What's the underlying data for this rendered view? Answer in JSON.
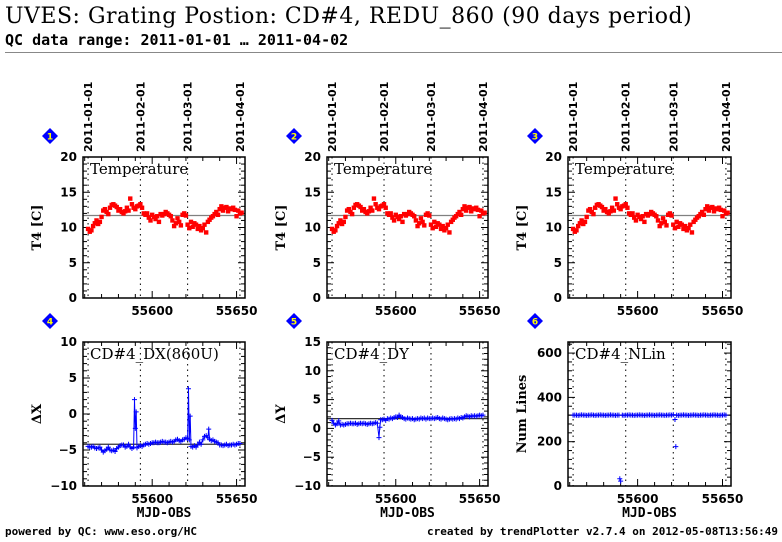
{
  "header": {
    "title": "UVES: Grating Postion: CD#4, REDU_860 (90 days period)",
    "subtitle": "QC data range: 2011-01-01 … 2011-04-02"
  },
  "footer": {
    "left": "powered by QC: www.eso.org/HC",
    "right": "created by trendPlotter v2.7.4 on 2012-05-08T13:56:49"
  },
  "colors": {
    "temperature_points": "#ff0000",
    "position_points": "#0000ff",
    "badge_fill": "#0000ff",
    "badge_number": "#ffff00",
    "reference_line": "#808080"
  },
  "chart_data": [
    {
      "id": "1",
      "type": "scatter",
      "title": "Temperature",
      "xlabel": "",
      "ylabel": "T4 [C]",
      "xlim": [
        55559,
        55655
      ],
      "ylim": [
        0,
        20
      ],
      "yticks": [
        0,
        5,
        10,
        15,
        20
      ],
      "xticks": [
        55600,
        55650
      ],
      "reference_line": 11.7,
      "marker": "dot",
      "color_key": "temperature_points",
      "date_markers": [
        {
          "label": "2011-01-01",
          "mjd": 55562
        },
        {
          "label": "2011-02-01",
          "mjd": 55593
        },
        {
          "label": "2011-03-01",
          "mjd": 55621
        },
        {
          "label": "2011-04-01",
          "mjd": 55652
        }
      ],
      "series_key": "temperature"
    },
    {
      "id": "2",
      "type": "scatter",
      "title": "Temperature",
      "xlabel": "",
      "ylabel": "T4 [C]",
      "xlim": [
        55559,
        55655
      ],
      "ylim": [
        0,
        20
      ],
      "yticks": [
        0,
        5,
        10,
        15,
        20
      ],
      "xticks": [
        55600,
        55650
      ],
      "reference_line": 11.7,
      "marker": "dot",
      "color_key": "temperature_points",
      "date_markers": [
        {
          "label": "2011-01-01",
          "mjd": 55562
        },
        {
          "label": "2011-02-01",
          "mjd": 55593
        },
        {
          "label": "2011-03-01",
          "mjd": 55621
        },
        {
          "label": "2011-04-01",
          "mjd": 55652
        }
      ],
      "series_key": "temperature"
    },
    {
      "id": "3",
      "type": "scatter",
      "title": "Temperature",
      "xlabel": "",
      "ylabel": "T4 [C]",
      "xlim": [
        55559,
        55655
      ],
      "ylim": [
        0,
        20
      ],
      "yticks": [
        0,
        5,
        10,
        15,
        20
      ],
      "xticks": [
        55600,
        55650
      ],
      "reference_line": 11.7,
      "marker": "dot",
      "color_key": "temperature_points",
      "date_markers": [
        {
          "label": "2011-01-01",
          "mjd": 55562
        },
        {
          "label": "2011-02-01",
          "mjd": 55593
        },
        {
          "label": "2011-03-01",
          "mjd": 55621
        },
        {
          "label": "2011-04-01",
          "mjd": 55652
        }
      ],
      "series_key": "temperature"
    },
    {
      "id": "4",
      "type": "line",
      "title": "CD#4_DX(860U)",
      "xlabel": "MJD-OBS",
      "ylabel": "ΔX",
      "xlim": [
        55559,
        55655
      ],
      "ylim": [
        -10,
        10
      ],
      "yticks": [
        -10,
        -5,
        0,
        5,
        10
      ],
      "xticks": [
        55600,
        55650
      ],
      "reference_line": -4.2,
      "marker": "plus",
      "color_key": "position_points",
      "date_markers": [
        {
          "label": "2011-01-01",
          "mjd": 55562
        },
        {
          "label": "2011-02-01",
          "mjd": 55593
        },
        {
          "label": "2011-03-01",
          "mjd": 55621
        },
        {
          "label": "2011-04-01",
          "mjd": 55652
        }
      ],
      "series_key": "dx"
    },
    {
      "id": "5",
      "type": "line",
      "title": "CD#4_DY",
      "xlabel": "MJD-OBS",
      "ylabel": "ΔY",
      "xlim": [
        55559,
        55655
      ],
      "ylim": [
        -10,
        15
      ],
      "yticks": [
        -10,
        -5,
        0,
        5,
        10,
        15
      ],
      "xticks": [
        55600,
        55650
      ],
      "reference_line": 1.7,
      "marker": "plus",
      "color_key": "position_points",
      "date_markers": [
        {
          "label": "2011-01-01",
          "mjd": 55562
        },
        {
          "label": "2011-02-01",
          "mjd": 55593
        },
        {
          "label": "2011-03-01",
          "mjd": 55621
        },
        {
          "label": "2011-04-01",
          "mjd": 55652
        }
      ],
      "series_key": "dy"
    },
    {
      "id": "6",
      "type": "scatter",
      "title": "CD#4_NLin",
      "xlabel": "MJD-OBS",
      "ylabel": "Num Lines",
      "xlim": [
        55559,
        55655
      ],
      "ylim": [
        0,
        650
      ],
      "yticks": [
        0,
        200,
        400,
        600
      ],
      "xticks": [
        55600,
        55650
      ],
      "reference_line": 320,
      "marker": "plus",
      "color_key": "position_points",
      "date_markers": [
        {
          "label": "2011-01-01",
          "mjd": 55562
        },
        {
          "label": "2011-02-01",
          "mjd": 55593
        },
        {
          "label": "2011-03-01",
          "mjd": 55621
        },
        {
          "label": "2011-04-01",
          "mjd": 55652
        }
      ],
      "series_key": "nlin"
    }
  ],
  "series": {
    "temperature": {
      "x": [
        55562,
        55563,
        55564,
        55565,
        55566,
        55567,
        55568,
        55569,
        55570,
        55571,
        55572,
        55573,
        55574,
        55575,
        55576,
        55577,
        55578,
        55579,
        55580,
        55581,
        55582,
        55583,
        55584,
        55585,
        55586,
        55587,
        55588,
        55589,
        55590,
        55591,
        55592,
        55593,
        55594,
        55595,
        55596,
        55597,
        55598,
        55599,
        55600,
        55601,
        55602,
        55603,
        55604,
        55605,
        55606,
        55607,
        55608,
        55609,
        55610,
        55611,
        55612,
        55613,
        55614,
        55615,
        55616,
        55617,
        55618,
        55619,
        55620,
        55621,
        55622,
        55623,
        55624,
        55625,
        55626,
        55627,
        55628,
        55629,
        55630,
        55631,
        55632,
        55633,
        55634,
        55635,
        55636,
        55637,
        55638,
        55639,
        55640,
        55641,
        55642,
        55643,
        55644,
        55645,
        55646,
        55647,
        55648,
        55649,
        55650,
        55651,
        55652,
        55653
      ],
      "y": [
        9.8,
        9.4,
        9.6,
        10.2,
        10.6,
        11.0,
        10.5,
        10.8,
        11.5,
        12.4,
        12.6,
        12.2,
        11.9,
        12.8,
        13.2,
        13.3,
        13.1,
        12.9,
        12.4,
        12.6,
        12.2,
        12.0,
        12.3,
        12.8,
        12.4,
        14.1,
        13.3,
        12.8,
        12.6,
        13.0,
        13.1,
        13.3,
        12.8,
        12.0,
        11.8,
        12.0,
        11.4,
        11.0,
        11.8,
        11.5,
        11.2,
        11.6,
        10.8,
        11.9,
        11.7,
        11.9,
        12.2,
        12.0,
        11.8,
        11.6,
        11.0,
        10.2,
        10.6,
        11.3,
        10.8,
        10.3,
        11.8,
        12.0,
        11.7,
        10.4,
        9.9,
        10.8,
        10.1,
        10.6,
        10.4,
        9.8,
        10.2,
        9.6,
        9.9,
        10.4,
        9.3,
        10.8,
        11.1,
        11.4,
        11.6,
        11.9,
        12.2,
        11.8,
        12.6,
        13.0,
        12.4,
        12.8,
        12.9,
        12.3,
        12.7,
        12.6,
        12.8,
        12.5,
        11.6,
        12.4,
        12.0,
        12.1
      ]
    },
    "dx": {
      "x": [
        55562,
        55563,
        55564,
        55565,
        55566,
        55567,
        55568,
        55569,
        55570,
        55571,
        55572,
        55573,
        55574,
        55575,
        55576,
        55577,
        55578,
        55579,
        55580,
        55581,
        55582,
        55583,
        55584,
        55585,
        55586,
        55587,
        55588,
        55589,
        55589.5,
        55590,
        55590.5,
        55591,
        55592,
        55593,
        55594,
        55595,
        55596,
        55597,
        55598,
        55599,
        55600,
        55601,
        55602,
        55603,
        55604,
        55605,
        55606,
        55607,
        55608,
        55609,
        55610,
        55611,
        55612,
        55613,
        55614,
        55615,
        55616,
        55617,
        55618,
        55619,
        55620,
        55621,
        55621.5,
        55622,
        55622.5,
        55623,
        55624,
        55625,
        55626,
        55627,
        55628,
        55629,
        55630,
        55631,
        55632,
        55633,
        55633.5,
        55634,
        55635,
        55636,
        55637,
        55638,
        55639,
        55640,
        55641,
        55642,
        55643,
        55644,
        55645,
        55646,
        55647,
        55648,
        55649,
        55650,
        55651,
        55652
      ],
      "y": [
        -4.5,
        -4.6,
        -4.6,
        -4.5,
        -4.7,
        -4.8,
        -4.7,
        -4.6,
        -5.0,
        -5.3,
        -5.1,
        -4.9,
        -4.6,
        -5.0,
        -5.1,
        -5.0,
        -5.2,
        -4.8,
        -4.6,
        -4.4,
        -4.3,
        -4.3,
        -4.6,
        -4.5,
        -4.2,
        -4.6,
        -4.8,
        -4.6,
        2.0,
        -2.0,
        0.3,
        -4.7,
        -4.5,
        -4.4,
        -4.5,
        -4.3,
        -4.2,
        -4.1,
        -4.2,
        -4.1,
        -4.0,
        -4.0,
        -3.9,
        -4.0,
        -4.0,
        -3.9,
        -3.8,
        -3.9,
        -3.9,
        -4.0,
        -3.9,
        -3.8,
        -3.9,
        -3.8,
        -3.6,
        -3.5,
        -3.7,
        -3.8,
        -3.6,
        -3.5,
        -3.3,
        -3.4,
        3.5,
        -3.6,
        -0.3,
        -4.5,
        -4.6,
        -4.4,
        -4.6,
        -4.3,
        -3.9,
        -4.2,
        -3.6,
        -3.1,
        -3.0,
        -3.3,
        -2.1,
        -3.5,
        -3.7,
        -3.6,
        -3.8,
        -3.9,
        -4.0,
        -4.3,
        -4.3,
        -4.4,
        -4.3,
        -4.2,
        -4.4,
        -4.3,
        -4.3,
        -4.2,
        -4.3,
        -4.2,
        -4.1,
        -4.1
      ]
    },
    "dy": {
      "x": [
        55562,
        55563,
        55564,
        55565,
        55566,
        55567,
        55568,
        55569,
        55570,
        55571,
        55572,
        55573,
        55574,
        55575,
        55576,
        55577,
        55578,
        55579,
        55580,
        55581,
        55582,
        55583,
        55584,
        55585,
        55586,
        55587,
        55588,
        55589,
        55590,
        55590.5,
        55591,
        55592,
        55593,
        55594,
        55595,
        55596,
        55597,
        55598,
        55599,
        55600,
        55601,
        55602,
        55603,
        55604,
        55605,
        55606,
        55607,
        55608,
        55609,
        55610,
        55611,
        55612,
        55613,
        55614,
        55615,
        55616,
        55617,
        55618,
        55619,
        55620,
        55621,
        55622,
        55623,
        55624,
        55625,
        55626,
        55627,
        55628,
        55629,
        55630,
        55631,
        55632,
        55633,
        55634,
        55635,
        55636,
        55637,
        55638,
        55639,
        55640,
        55641,
        55642,
        55643,
        55644,
        55645,
        55646,
        55647,
        55648,
        55649,
        55650,
        55651,
        55652
      ],
      "y": [
        1.4,
        0.9,
        0.6,
        0.8,
        1.3,
        0.6,
        0.7,
        0.6,
        0.7,
        0.8,
        0.8,
        0.9,
        0.8,
        0.8,
        0.9,
        0.7,
        0.8,
        0.9,
        0.8,
        0.9,
        0.8,
        0.7,
        0.8,
        0.9,
        0.8,
        0.9,
        1.0,
        0.9,
        -1.6,
        0.2,
        1.5,
        1.5,
        1.6,
        1.4,
        1.7,
        1.6,
        1.8,
        1.7,
        1.9,
        2.0,
        1.9,
        2.3,
        2.0,
        1.9,
        1.7,
        1.6,
        1.8,
        1.7,
        1.6,
        1.7,
        1.5,
        1.6,
        1.7,
        1.6,
        1.8,
        1.7,
        1.8,
        1.6,
        1.8,
        1.7,
        1.7,
        1.8,
        1.7,
        1.8,
        1.9,
        1.7,
        1.6,
        1.8,
        1.7,
        1.6,
        1.5,
        1.6,
        1.7,
        1.6,
        1.7,
        1.6,
        1.8,
        1.7,
        1.9,
        1.8,
        2.0,
        2.2,
        2.1,
        2.0,
        2.2,
        2.1,
        2.2,
        2.1,
        2.2,
        2.3,
        2.2,
        2.3
      ]
    },
    "nlin": {
      "x": [
        55562,
        55563,
        55564,
        55565,
        55566,
        55567,
        55568,
        55569,
        55570,
        55571,
        55572,
        55573,
        55574,
        55575,
        55576,
        55577,
        55578,
        55579,
        55580,
        55581,
        55582,
        55583,
        55584,
        55585,
        55586,
        55587,
        55588,
        55589,
        55589.5,
        55590,
        55591,
        55592,
        55593,
        55594,
        55595,
        55596,
        55597,
        55598,
        55599,
        55600,
        55601,
        55602,
        55603,
        55604,
        55605,
        55606,
        55607,
        55608,
        55609,
        55610,
        55611,
        55612,
        55613,
        55614,
        55615,
        55616,
        55617,
        55618,
        55619,
        55620,
        55621,
        55622,
        55622.5,
        55623,
        55624,
        55625,
        55626,
        55627,
        55628,
        55629,
        55630,
        55631,
        55632,
        55633,
        55634,
        55635,
        55636,
        55637,
        55638,
        55639,
        55640,
        55641,
        55642,
        55643,
        55644,
        55645,
        55646,
        55647,
        55648,
        55649,
        55650,
        55651,
        55652
      ],
      "y": [
        320,
        320,
        320,
        319,
        320,
        321,
        320,
        320,
        319,
        320,
        320,
        321,
        320,
        319,
        320,
        320,
        321,
        320,
        320,
        319,
        320,
        320,
        321,
        320,
        320,
        319,
        320,
        320,
        33,
        22,
        320,
        319,
        320,
        320,
        321,
        320,
        320,
        319,
        320,
        320,
        321,
        320,
        320,
        319,
        320,
        320,
        321,
        320,
        320,
        319,
        320,
        320,
        321,
        320,
        320,
        319,
        320,
        320,
        321,
        320,
        322,
        300,
        178,
        320,
        319,
        320,
        320,
        321,
        320,
        320,
        319,
        320,
        320,
        321,
        320,
        320,
        319,
        320,
        320,
        321,
        320,
        320,
        319,
        320,
        320,
        321,
        320,
        320,
        319,
        320,
        320,
        321,
        320
      ]
    }
  }
}
